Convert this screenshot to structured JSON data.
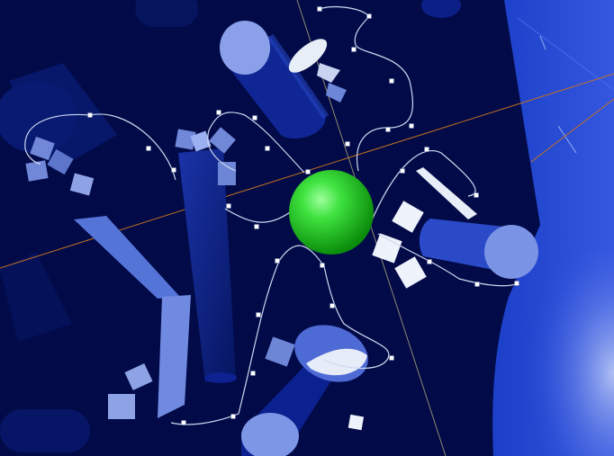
{
  "scene": {
    "view": "3d-viewport",
    "background_color": "#020a48",
    "selected_object": {
      "name": "sphere",
      "color": "#22dd22"
    },
    "spline_color": "#d0d8f0",
    "handle_color": "#ffffff",
    "axis_color": "#c07020",
    "object_color_dark": "#0a1e8c",
    "object_color_light": "#8aa0e8",
    "cube_color": "#e8eef8"
  }
}
